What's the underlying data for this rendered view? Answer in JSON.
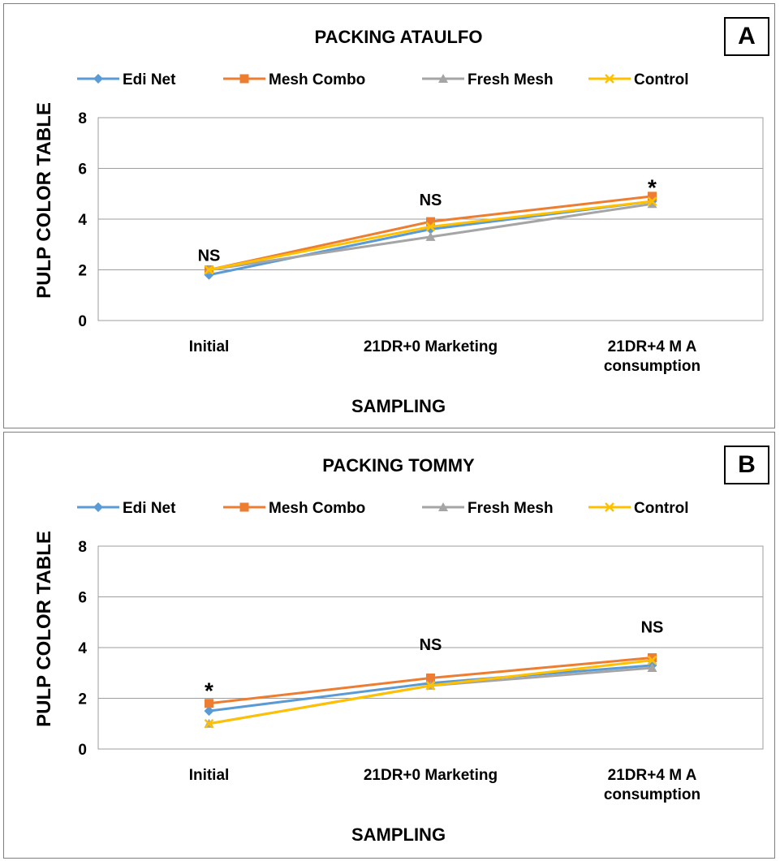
{
  "chart_data": [
    {
      "type": "line",
      "panel_label": "A",
      "title": "PACKING ATAULFO",
      "xlabel": "SAMPLING",
      "ylabel": "PULP COLOR TABLE",
      "ylim": [
        0,
        8
      ],
      "yticks": [
        "0",
        "2",
        "4",
        "6",
        "8"
      ],
      "categories": [
        "Initial",
        "21DR+0 Marketing",
        "21DR+4 M  A consumption"
      ],
      "category_lines": [
        [
          "Initial"
        ],
        [
          "21DR+0 Marketing"
        ],
        [
          "21DR+4 M  A",
          "consumption"
        ]
      ],
      "series": [
        {
          "name": "Edi Net",
          "color": "#5b9bd5",
          "marker": "diamond",
          "values": [
            1.8,
            3.6,
            4.7
          ]
        },
        {
          "name": "Mesh Combo",
          "color": "#ed7d31",
          "marker": "square",
          "values": [
            2.0,
            3.9,
            4.9
          ]
        },
        {
          "name": "Fresh Mesh",
          "color": "#a5a5a5",
          "marker": "triangle",
          "values": [
            2.0,
            3.3,
            4.6
          ]
        },
        {
          "name": "Control",
          "color": "#ffc000",
          "marker": "x",
          "values": [
            2.0,
            3.7,
            4.7
          ]
        }
      ],
      "annotations": [
        {
          "category": 0,
          "y": 2.35,
          "text": "NS"
        },
        {
          "category": 1,
          "y": 4.55,
          "text": "NS"
        },
        {
          "category": 2,
          "y": 5.4,
          "text": "*"
        }
      ],
      "legend": "top",
      "grid": true
    },
    {
      "type": "line",
      "panel_label": "B",
      "title": "PACKING TOMMY",
      "xlabel": "SAMPLING",
      "ylabel": "PULP COLOR TABLE",
      "ylim": [
        0,
        8
      ],
      "yticks": [
        "0",
        "2",
        "4",
        "6",
        "8"
      ],
      "categories": [
        "Initial",
        "21DR+0 Marketing",
        "21DR+4 M  A consumption"
      ],
      "category_lines": [
        [
          "Initial"
        ],
        [
          "21DR+0 Marketing"
        ],
        [
          "21DR+4 M  A",
          "consumption"
        ]
      ],
      "series": [
        {
          "name": "Edi Net",
          "color": "#5b9bd5",
          "marker": "diamond",
          "values": [
            1.5,
            2.6,
            3.3
          ]
        },
        {
          "name": "Mesh Combo",
          "color": "#ed7d31",
          "marker": "square",
          "values": [
            1.8,
            2.8,
            3.6
          ]
        },
        {
          "name": "Fresh Mesh",
          "color": "#a5a5a5",
          "marker": "triangle",
          "values": [
            1.0,
            2.5,
            3.2
          ]
        },
        {
          "name": "Control",
          "color": "#ffc000",
          "marker": "x",
          "values": [
            1.0,
            2.5,
            3.5
          ]
        }
      ],
      "annotations": [
        {
          "category": 0,
          "y": 2.45,
          "text": "*"
        },
        {
          "category": 1,
          "y": 3.9,
          "text": "NS"
        },
        {
          "category": 2,
          "y": 4.6,
          "text": "NS"
        }
      ],
      "legend": "top",
      "grid": true
    }
  ]
}
